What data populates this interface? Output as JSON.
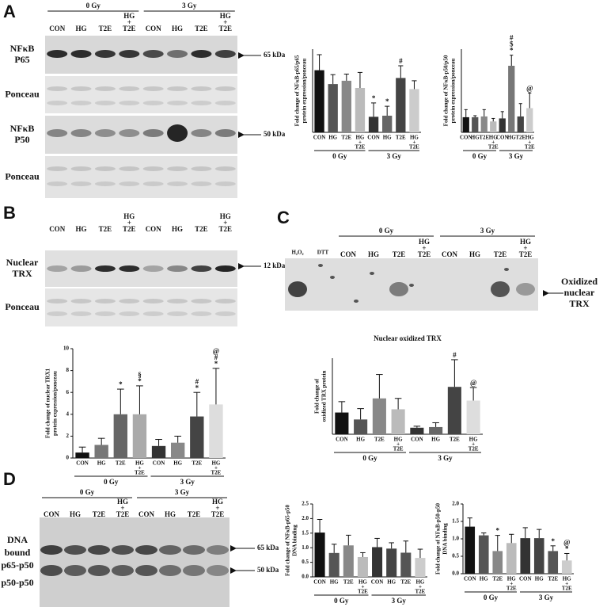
{
  "panels": {
    "A": {
      "letter": "A",
      "groups": [
        "0 Gy",
        "3 Gy"
      ],
      "lanes": [
        "CON",
        "HG",
        "T2E",
        [
          "HG",
          "+",
          "T2E"
        ],
        "CON",
        "HG",
        "T2E",
        [
          "HG",
          "+",
          "T2E"
        ]
      ],
      "rows": [
        {
          "label": [
            "NFκB",
            "P65"
          ],
          "marker": "65 kDa"
        },
        {
          "label": [
            "Ponceau"
          ]
        },
        {
          "label": [
            "NFκB",
            "P50"
          ],
          "marker": "50 kDa"
        },
        {
          "label": [
            "Ponceau"
          ]
        }
      ]
    },
    "B": {
      "letter": "B",
      "lanes": [
        "CON",
        "HG",
        "T2E",
        [
          "HG",
          "+",
          "T2E"
        ],
        "CON",
        "HG",
        "T2E",
        [
          "HG",
          "+",
          "T2E"
        ]
      ],
      "rows": [
        {
          "label": [
            "Nuclear",
            "TRX"
          ],
          "marker": "12 kDa"
        },
        {
          "label": [
            "Ponceau"
          ]
        }
      ]
    },
    "C": {
      "letter": "C",
      "groups": [
        "0 Gy",
        "3 Gy"
      ],
      "controls": [
        "H₂O₂",
        "DTT"
      ],
      "lanes": [
        "CON",
        "HG",
        "T2E",
        [
          "HG",
          "+",
          "T2E"
        ],
        "CON",
        "HG",
        "T2E",
        [
          "HG",
          "+",
          "T2E"
        ]
      ],
      "marker": [
        "Oxidized",
        "nuclear",
        "TRX"
      ]
    },
    "D": {
      "letter": "D",
      "groups": [
        "0 Gy",
        "3 Gy"
      ],
      "lanes": [
        "CON",
        "HG",
        "T2E",
        [
          "HG",
          "+",
          "T2E"
        ],
        "CON",
        "HG",
        "T2E",
        [
          "HG",
          "+",
          "T2E"
        ]
      ],
      "label": [
        "DNA",
        "bound",
        "p65-p50"
      ],
      "label2": "p50-p50",
      "markers": [
        "65 kDa",
        "50 kDa"
      ]
    }
  },
  "chart_data": [
    {
      "type": "bar",
      "ylabel": [
        "Fold change of NFκB-p65/p65",
        "protein expression/ponceau"
      ],
      "categories": [
        "CON",
        "HG",
        "T2E",
        [
          "HG",
          "+",
          "T2E"
        ],
        "CON",
        "HG",
        "T2E",
        [
          "HG",
          "+",
          "T2E"
        ]
      ],
      "groups": [
        "0 Gy",
        "3 Gy"
      ],
      "values": [
        1.12,
        0.87,
        0.93,
        0.8,
        0.28,
        0.3,
        0.98,
        0.78
      ],
      "errors": [
        0.28,
        0.17,
        0.12,
        0.28,
        0.25,
        0.17,
        0.22,
        0.15
      ],
      "annotations": [
        null,
        null,
        null,
        null,
        [
          "*"
        ],
        [
          "*"
        ],
        [
          "#"
        ],
        null
      ],
      "colors": [
        "#111111",
        "#555555",
        "#888888",
        "#bbbbbb",
        "#333333",
        "#666666",
        "#444444",
        "#cccccc"
      ],
      "ylim": [
        0,
        1.5
      ]
    },
    {
      "type": "bar",
      "ylabel": [
        "Fold change of NFκB-p50/p50",
        "protein expression/ponceau"
      ],
      "categories": [
        "CON",
        "HG",
        "T2E",
        [
          "HG",
          "+",
          "T2E"
        ],
        "CON",
        "HG",
        "T2E",
        [
          "HG",
          "+",
          "T2E"
        ]
      ],
      "groups": [
        "0 Gy",
        "3 Gy"
      ],
      "values": [
        1.0,
        1.0,
        1.05,
        0.72,
        0.92,
        4.4,
        1.05,
        1.6
      ],
      "errors": [
        0.5,
        0.1,
        0.45,
        0.2,
        0.45,
        0.7,
        0.85,
        1.0
      ],
      "annotations": [
        null,
        null,
        null,
        null,
        null,
        [
          "#",
          "$",
          "*"
        ],
        null,
        [
          "@"
        ]
      ],
      "colors": [
        "#111111",
        "#555555",
        "#888888",
        "#bbbbbb",
        "#333333",
        "#777777",
        "#444444",
        "#cccccc"
      ],
      "ylim": [
        0,
        5.5
      ]
    },
    {
      "type": "bar",
      "ylabel": [
        "Fold change of nuclear TRX1",
        "protein expression/ponceau"
      ],
      "categories": [
        "CON",
        "HG",
        "T2E",
        [
          "HG",
          "+",
          "T2E"
        ],
        "CON",
        "HG",
        "T2E",
        [
          "HG",
          "+",
          "T2E"
        ]
      ],
      "groups": [
        "0 Gy",
        "3 Gy"
      ],
      "values": [
        0.5,
        1.2,
        4.0,
        4.0,
        1.1,
        1.4,
        3.8,
        4.9
      ],
      "errors": [
        0.5,
        0.6,
        2.3,
        2.6,
        0.6,
        0.6,
        2.2,
        3.3
      ],
      "annotations": [
        null,
        null,
        [
          "*"
        ],
        [
          "§",
          "*"
        ],
        null,
        null,
        [
          "#",
          "*"
        ],
        [
          "@",
          "#",
          "*"
        ]
      ],
      "colors": [
        "#111111",
        "#777777",
        "#666666",
        "#aaaaaa",
        "#333333",
        "#888888",
        "#444444",
        "#dddddd"
      ],
      "ylim": [
        0,
        10
      ],
      "yticks": [
        0,
        2,
        4,
        6,
        8,
        10
      ]
    },
    {
      "type": "bar",
      "title": "Nuclear oxidized TRX",
      "ylabel": [
        "Fold change of",
        "oxidized TRX protein"
      ],
      "categories": [
        "CON",
        "HG",
        "T2E",
        [
          "HG",
          "+",
          "T2E"
        ],
        "CON",
        "HG",
        "T2E",
        [
          "HG",
          "+",
          "T2E"
        ]
      ],
      "groups": [
        "0 Gy",
        "3 Gy"
      ],
      "values": [
        1.0,
        0.68,
        1.65,
        1.15,
        0.3,
        0.33,
        2.18,
        1.55
      ],
      "errors": [
        0.5,
        0.5,
        1.1,
        0.5,
        0.07,
        0.2,
        1.25,
        0.6
      ],
      "annotations": [
        null,
        null,
        null,
        null,
        null,
        null,
        [
          "#"
        ],
        [
          "@"
        ]
      ],
      "colors": [
        "#111111",
        "#555555",
        "#888888",
        "#bbbbbb",
        "#333333",
        "#666666",
        "#444444",
        "#dddddd"
      ],
      "ylim": [
        0,
        3.5
      ]
    },
    {
      "type": "bar",
      "ylabel": [
        "Fold change of NFκB-p65-p50",
        "DNA binding"
      ],
      "categories": [
        "CON",
        "HG",
        "T2E",
        [
          "HG",
          "+",
          "T2E"
        ],
        "CON",
        "HG",
        "T2E",
        [
          "HG",
          "+",
          "T2E"
        ]
      ],
      "groups": [
        "0 Gy",
        "3 Gy"
      ],
      "values": [
        1.52,
        0.82,
        1.08,
        0.68,
        1.02,
        0.97,
        0.83,
        0.65
      ],
      "errors": [
        0.45,
        0.3,
        0.35,
        0.15,
        0.3,
        0.2,
        0.4,
        0.3
      ],
      "annotations": [
        null,
        null,
        null,
        null,
        null,
        null,
        null,
        null
      ],
      "colors": [
        "#111111",
        "#555555",
        "#888888",
        "#bbbbbb",
        "#333333",
        "#444444",
        "#555555",
        "#cccccc"
      ],
      "ylim": [
        0,
        2.5
      ],
      "yticks": [
        {
          "value": 0,
          "label": "0.0"
        },
        0.5,
        {
          "value": 1,
          "label": "1.0"
        },
        1.5,
        {
          "value": 2,
          "label": "2.0"
        },
        2.5
      ]
    },
    {
      "type": "bar",
      "ylabel": [
        "Fold change of NFκB-p50-p50",
        "DNA binding"
      ],
      "categories": [
        "CON",
        "HG",
        "T2E",
        [
          "HG",
          "+",
          "T2E"
        ],
        "CON",
        "HG",
        "T2E",
        [
          "HG",
          "+",
          "T2E"
        ]
      ],
      "groups": [
        "0 Gy",
        "3 Gy"
      ],
      "values": [
        1.35,
        1.1,
        0.65,
        0.88,
        1.02,
        1.02,
        0.65,
        0.38
      ],
      "errors": [
        0.25,
        0.07,
        0.45,
        0.25,
        0.3,
        0.25,
        0.15,
        0.2
      ],
      "annotations": [
        null,
        null,
        [
          "*"
        ],
        null,
        null,
        null,
        [
          "*"
        ],
        [
          "@",
          "*"
        ]
      ],
      "colors": [
        "#111111",
        "#555555",
        "#888888",
        "#bbbbbb",
        "#333333",
        "#444444",
        "#555555",
        "#cccccc"
      ],
      "ylim": [
        0,
        2
      ],
      "yticks": [
        {
          "value": 0,
          "label": "0.0"
        },
        0.5,
        {
          "value": 1,
          "label": "1.0"
        },
        1.5,
        {
          "value": 2,
          "label": "2.0"
        }
      ]
    }
  ]
}
